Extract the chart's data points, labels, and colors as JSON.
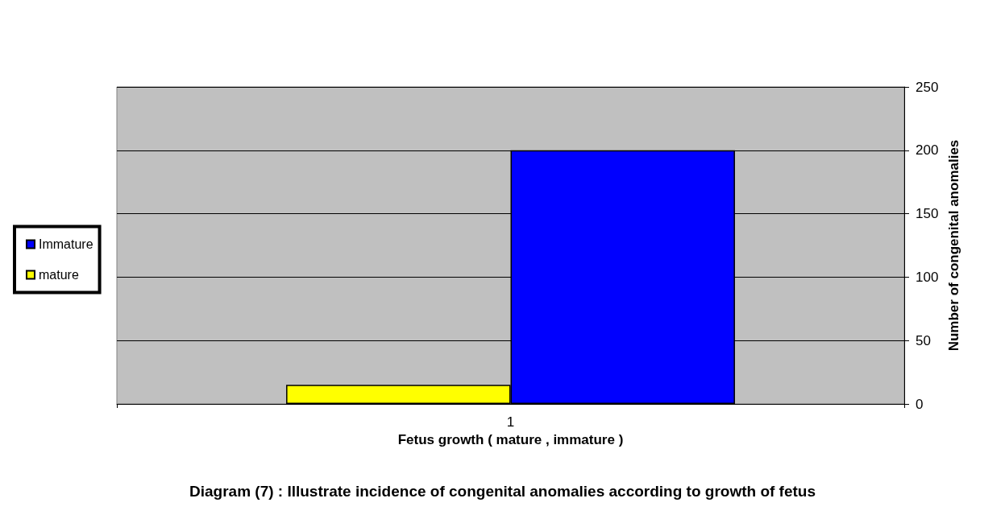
{
  "chart_data": {
    "type": "bar",
    "title": "Diagram (7) : Illustrate incidence of congenital anomalies according to growth of fetus",
    "xlabel": "Fetus growth ( mature , immature )",
    "ylabel": "Number of congenital anomalies",
    "categories": [
      "1"
    ],
    "series": [
      {
        "name": "mature",
        "color": "#ffff00",
        "values": [
          15
        ]
      },
      {
        "name": "Immature",
        "color": "#0000ff",
        "values": [
          200
        ]
      }
    ],
    "ylim": [
      0,
      250
    ],
    "yticks": [
      0,
      50,
      100,
      150,
      200,
      250
    ],
    "grid": "y",
    "legend": "left"
  }
}
